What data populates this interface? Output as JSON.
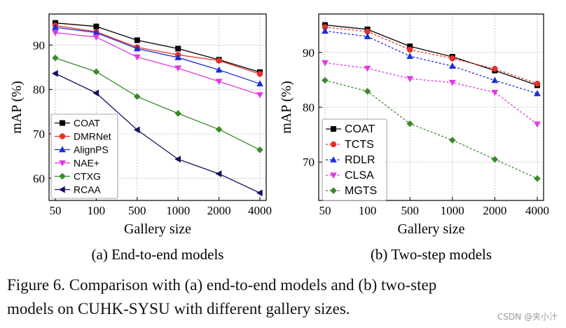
{
  "figure": {
    "caption_line1": "Figure 6. Comparison with (a) end-to-end models and (b) two-step",
    "caption_line2": "models on CUHK-SYSU with different gallery sizes.",
    "watermark": "CSDN @夹小汁"
  },
  "chart_data": [
    {
      "type": "line",
      "subtitle": "(a) End-to-end models",
      "xlabel": "Gallery size",
      "ylabel": "mAP (%)",
      "categories": [
        "50",
        "100",
        "500",
        "1000",
        "2000",
        "4000"
      ],
      "ylim": [
        55,
        97
      ],
      "yticks": [
        60,
        70,
        80,
        90
      ],
      "grid": true,
      "legend_position": "bottom-left",
      "series": [
        {
          "name": "COAT",
          "values": [
            95.0,
            94.2,
            91.1,
            89.2,
            86.7,
            83.9
          ],
          "color": "#000000",
          "marker": "square",
          "dash": "solid"
        },
        {
          "name": "DMRNet",
          "values": [
            94.4,
            93.0,
            89.5,
            87.8,
            86.5,
            83.5
          ],
          "color": "#e8302a",
          "marker": "circle",
          "dash": "solid"
        },
        {
          "name": "AlignPS",
          "values": [
            94.0,
            92.8,
            89.2,
            87.2,
            84.4,
            81.3
          ],
          "color": "#1a2fd6",
          "marker": "triangle-up",
          "dash": "solid"
        },
        {
          "name": "NAE+",
          "values": [
            92.8,
            91.8,
            87.3,
            84.8,
            81.8,
            78.8
          ],
          "color": "#e03be0",
          "marker": "triangle-down",
          "dash": "solid"
        },
        {
          "name": "CTXG",
          "values": [
            87.1,
            84.0,
            78.4,
            74.6,
            71.0,
            66.4
          ],
          "color": "#3a8a2a",
          "marker": "diamond",
          "dash": "solid"
        },
        {
          "name": "RCAA",
          "values": [
            83.6,
            79.2,
            70.9,
            64.3,
            61.0,
            56.7
          ],
          "color": "#12125e",
          "marker": "triangle-left",
          "dash": "solid"
        }
      ]
    },
    {
      "type": "line",
      "subtitle": "(b) Two-step models",
      "xlabel": "Gallery size",
      "ylabel": "mAP (%)",
      "categories": [
        "50",
        "100",
        "500",
        "1000",
        "2000",
        "4000"
      ],
      "ylim": [
        63,
        97
      ],
      "yticks": [
        70,
        80,
        90
      ],
      "grid": true,
      "legend_position": "bottom-left",
      "series": [
        {
          "name": "COAT",
          "values": [
            95.0,
            94.2,
            91.1,
            89.2,
            86.7,
            84.0
          ],
          "color": "#000000",
          "marker": "square",
          "dash": "solid"
        },
        {
          "name": "TCTS",
          "values": [
            94.6,
            93.8,
            90.5,
            88.9,
            87.0,
            84.3
          ],
          "color": "#e8302a",
          "marker": "circle",
          "dash": "dashed"
        },
        {
          "name": "RDLR",
          "values": [
            93.9,
            92.9,
            89.3,
            87.5,
            84.9,
            82.5
          ],
          "color": "#1a2fd6",
          "marker": "triangle-up",
          "dash": "dashed"
        },
        {
          "name": "CLSA",
          "values": [
            88.1,
            87.1,
            85.2,
            84.5,
            82.7,
            76.9
          ],
          "color": "#e03be0",
          "marker": "triangle-down",
          "dash": "dashed"
        },
        {
          "name": "MGTS",
          "values": [
            84.9,
            82.9,
            77.0,
            74.0,
            70.5,
            67.0
          ],
          "color": "#3a8a2a",
          "marker": "diamond",
          "dash": "dashed"
        }
      ]
    }
  ]
}
